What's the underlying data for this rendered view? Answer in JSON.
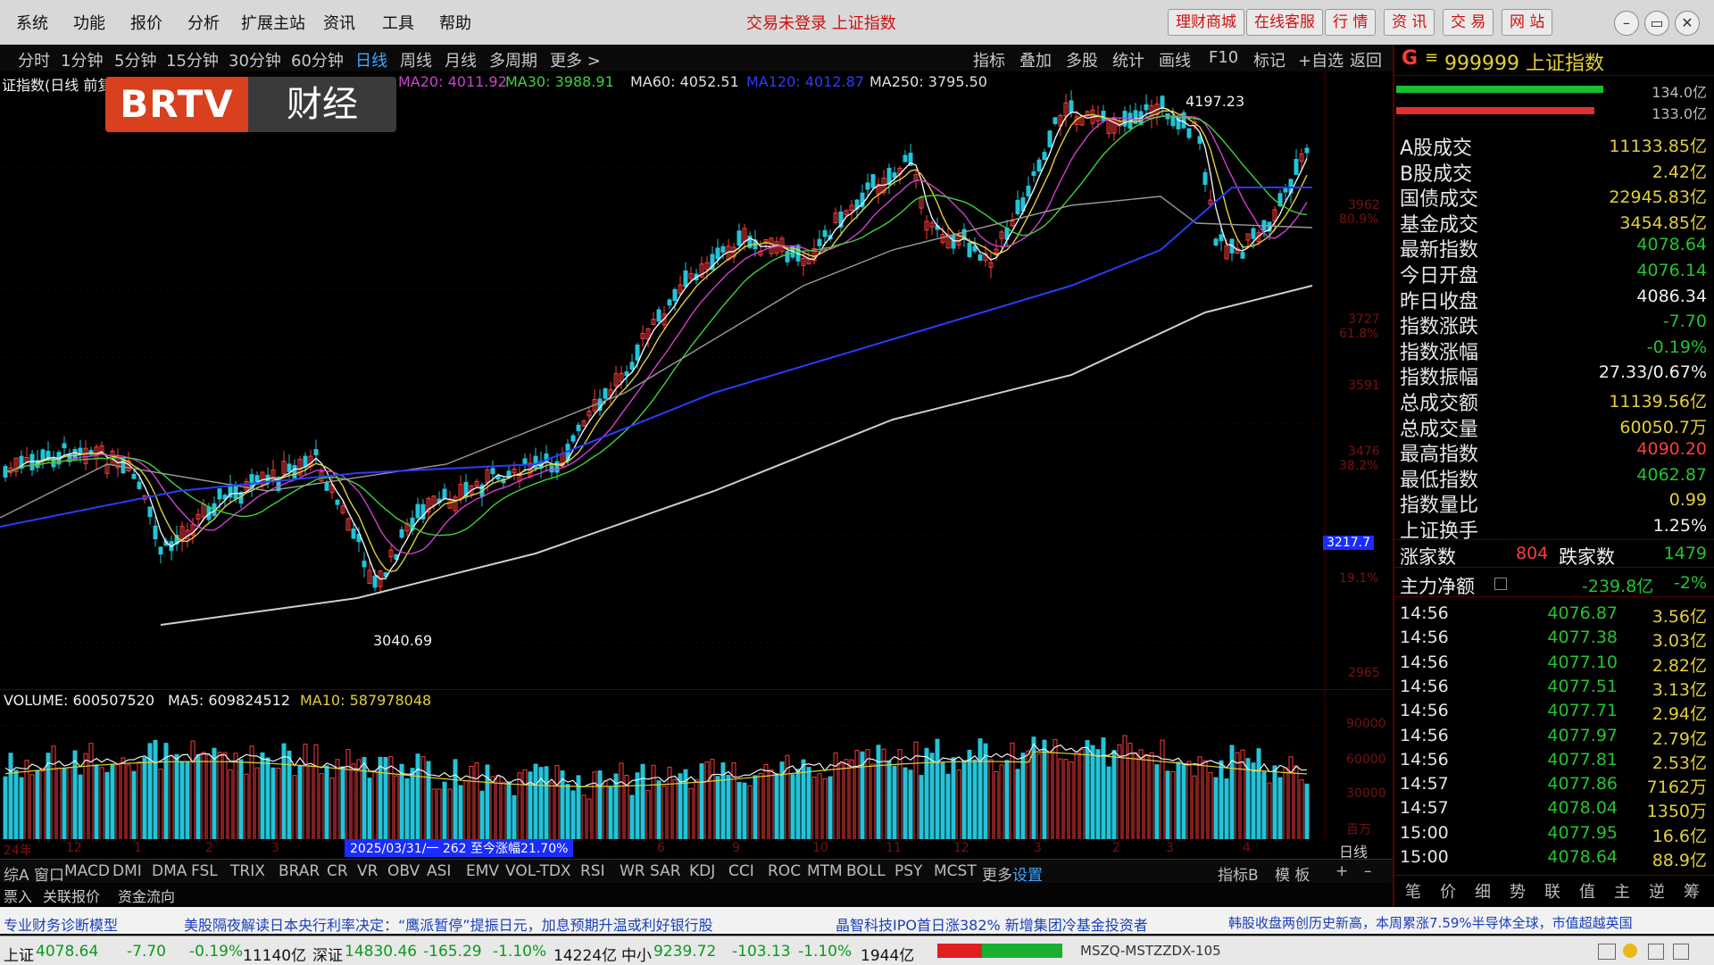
{
  "menubar": {
    "items": [
      "系统",
      "功能",
      "报价",
      "分析",
      "扩展主站",
      "资讯",
      "工具",
      "帮助"
    ],
    "center_title": "交易未登录 上证指数",
    "right_buttons": [
      "理财商城",
      "在线客服",
      "行 情",
      "资 讯",
      "交 易",
      "网 站"
    ],
    "window_controls": [
      "–",
      "▭",
      "✕"
    ]
  },
  "periodbar": {
    "items": [
      "分时",
      "1分钟",
      "5分钟",
      "15分钟",
      "30分钟",
      "60分钟",
      "日线",
      "周线",
      "月线",
      "多周期",
      "更多 >"
    ],
    "active": "日线",
    "right_items": [
      "指标",
      "叠加",
      "多股",
      "统计",
      "画线",
      "F10",
      "标记",
      "+自选",
      "返回"
    ]
  },
  "legend": {
    "prefix": "证指数(日线 前复权)",
    "ma20": "MA20: 4011.92",
    "ma30": "MA30: 3988.91",
    "ma60": "MA60: 4052.51",
    "ma120": "MA120: 4012.87",
    "ma250": "MA250: 3795.50"
  },
  "logo": {
    "part1": "BRTV",
    "part2": "财经"
  },
  "annotations": {
    "high": "4197.23",
    "low": "3040.69",
    "current_price_tag": "3217.7"
  },
  "price_axis": [
    {
      "value": "3962",
      "pct": "80.9%"
    },
    {
      "value": "3727",
      "pct": "61.8%"
    },
    {
      "value": "3591",
      "pct": ""
    },
    {
      "value": "3476",
      "pct": "38.2%"
    },
    {
      "value": "",
      "pct": "19.1%"
    },
    {
      "value": "2965",
      "pct": ""
    }
  ],
  "volume_legend": {
    "volume": "VOLUME: 600507520",
    "ma5": "MA5: 609824512",
    "ma10": "MA10: 587978048"
  },
  "volume_axis": [
    "90000",
    "60000",
    "30000",
    "百万"
  ],
  "date_axis": {
    "labels": [
      "24年",
      "12",
      "1",
      "2",
      "3",
      "6",
      "9",
      "10",
      "11",
      "12",
      "3",
      "2",
      "3",
      "4"
    ],
    "highlight": "2025/03/31/一 262 至今涨幅21.70%",
    "right_label": "日线"
  },
  "indicators": [
    "综A",
    "窗口",
    "MACD",
    "DMI",
    "DMA",
    "FSL",
    "TRIX",
    "BRAR",
    "CR",
    "VR",
    "OBV",
    "ASI",
    "EMV",
    "VOL-TDX",
    "RSI",
    "WR",
    "SAR",
    "KDJ",
    "CCI",
    "ROC",
    "MTM",
    "BOLL",
    "PSY",
    "MCST",
    "更多",
    "设置"
  ],
  "indicators_right": [
    "指标B",
    "模 板",
    "+",
    "–"
  ],
  "subbar": [
    "票入",
    "关联报价",
    "资金流向"
  ],
  "ticker": [
    "专业财务诊断模型",
    "美股隔夜解读日本央行利率决定：“鹰派暂停”提振日元，加息预期升温或利好银行股",
    "晶智科技IPO首日涨382% 新增集团冷基金投资者",
    "韩股收盘两创历史新高，本周累涨7.59%半导体全球，市值超越英国"
  ],
  "status": {
    "sh_label": "上证",
    "sh_price": "4078.64",
    "sh_chg": "-7.70",
    "sh_pct": "-0.19%",
    "sh_amt": "11140亿",
    "sz_label": "深证",
    "sz_price": "14830.46",
    "sz_chg": "-165.29",
    "sz_pct": "-1.10%",
    "sz_amt": "14224亿",
    "zx_label": "中小",
    "zx_price": "9239.72",
    "zx_chg": "-103.13",
    "zx_pct": "-1.10%",
    "zx_amt": "1944亿",
    "server": "MSZQ-MSTZZDX-105"
  },
  "panel": {
    "code_title": "999999 上证指数",
    "mark": "G",
    "bar_vals": [
      "134.0亿",
      "133.0亿"
    ],
    "rows": [
      {
        "label": "A股成交",
        "value": "11133.85亿",
        "color": "#e2cf3a"
      },
      {
        "label": "B股成交",
        "value": "2.42亿",
        "color": "#e2cf3a"
      },
      {
        "label": "国债成交",
        "value": "22945.83亿",
        "color": "#e2cf3a"
      },
      {
        "label": "基金成交",
        "value": "3454.85亿",
        "color": "#e2cf3a"
      },
      {
        "label": "最新指数",
        "value": "4078.64",
        "color": "#22c432"
      },
      {
        "label": "今日开盘",
        "value": "4076.14",
        "color": "#22c432"
      },
      {
        "label": "昨日收盘",
        "value": "4086.34",
        "color": "#f0f0f0"
      },
      {
        "label": "指数涨跌",
        "value": "-7.70",
        "color": "#22c432"
      },
      {
        "label": "指数涨幅",
        "value": "-0.19%",
        "color": "#22c432"
      },
      {
        "label": "指数振幅",
        "value": "27.33/0.67%",
        "color": "#f0f0f0"
      },
      {
        "label": "总成交额",
        "value": "11139.56亿",
        "color": "#e2cf3a"
      },
      {
        "label": "总成交量",
        "value": "60050.7万",
        "color": "#e2cf3a"
      },
      {
        "label": "最高指数",
        "value": "4090.20",
        "color": "#ff3b3b"
      },
      {
        "label": "最低指数",
        "value": "4062.87",
        "color": "#22c432"
      },
      {
        "label": "指数量比",
        "value": "0.99",
        "color": "#e2cf3a"
      },
      {
        "label": "上证换手",
        "value": "1.25%",
        "color": "#f0f0f0"
      }
    ],
    "updown": {
      "up_label": "涨家数",
      "up": "804",
      "down_label": "跌家数",
      "down": "1479"
    },
    "net": {
      "label": "主力净额",
      "value": "-239.8亿",
      "pct": "-2%"
    },
    "ticks": [
      {
        "t": "14:56",
        "p": "4076.87",
        "v": "3.56亿"
      },
      {
        "t": "14:56",
        "p": "4077.38",
        "v": "3.03亿"
      },
      {
        "t": "14:56",
        "p": "4077.10",
        "v": "2.82亿"
      },
      {
        "t": "14:56",
        "p": "4077.51",
        "v": "3.13亿"
      },
      {
        "t": "14:56",
        "p": "4077.71",
        "v": "2.94亿"
      },
      {
        "t": "14:56",
        "p": "4077.97",
        "v": "2.79亿"
      },
      {
        "t": "14:56",
        "p": "4077.81",
        "v": "2.53亿"
      },
      {
        "t": "14:57",
        "p": "4077.86",
        "v": "7162万"
      },
      {
        "t": "14:57",
        "p": "4078.04",
        "v": "1350万"
      },
      {
        "t": "15:00",
        "p": "4077.95",
        "v": "16.6亿"
      },
      {
        "t": "15:00",
        "p": "4078.64",
        "v": "88.9亿"
      }
    ],
    "tabs": [
      "笔",
      "价",
      "细",
      "势",
      "联",
      "值",
      "主",
      "逆",
      "筹"
    ]
  },
  "colors": {
    "up": "#ff3b3b",
    "down": "#22c4d8",
    "ma5": "#f0f0f0",
    "ma10": "#e2cf3a",
    "ma20": "#d040d0",
    "ma30": "#3cd43c",
    "ma60": "#9a9a9a",
    "ma120": "#2a3cff",
    "ma250": "#cfcfcf"
  }
}
